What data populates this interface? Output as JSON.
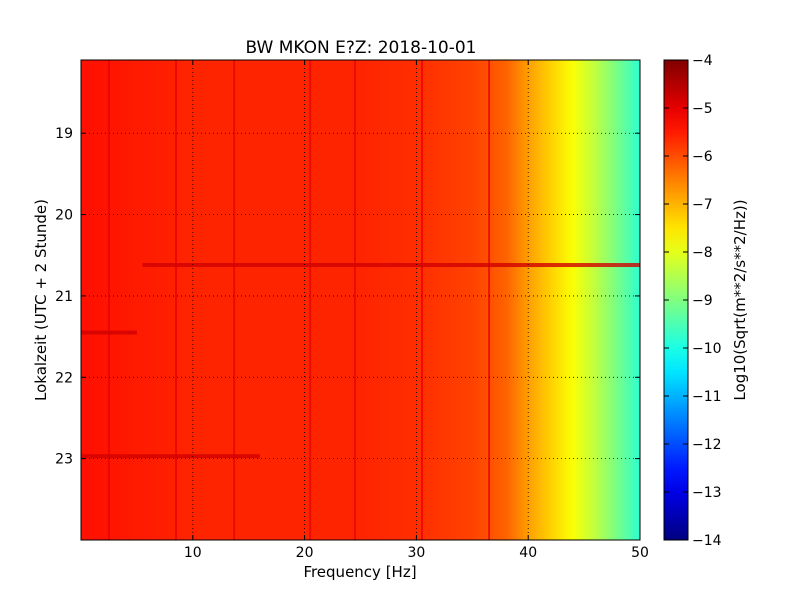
{
  "chart_data": {
    "type": "heatmap",
    "title": "BW MKON E?Z: 2018-10-01",
    "xlabel": "Frequency [Hz]",
    "ylabel": "Lokalzeit (UTC + 2 Stunde)",
    "colorbar_label": "Log10(Sqrt(m**2/s**2/Hz))",
    "xlim": [
      0,
      50
    ],
    "ylim": [
      24,
      18.1
    ],
    "x_ticks": [
      10,
      20,
      30,
      40,
      50
    ],
    "y_ticks": [
      19,
      20,
      21,
      22,
      23
    ],
    "color_scale": {
      "vmin": -14,
      "vmax": -4,
      "colormap": "jet",
      "ticks": [
        -4,
        -5,
        -6,
        -7,
        -8,
        -9,
        -10,
        -11,
        -12,
        -13,
        -14
      ]
    },
    "grid": true,
    "spectral_profile": {
      "frequency_hz": [
        0,
        5,
        10,
        15,
        20,
        25,
        30,
        35,
        38,
        40,
        42,
        44,
        46,
        48,
        50
      ],
      "log10_amplitude": [
        -5.4,
        -5.5,
        -5.6,
        -5.6,
        -5.6,
        -5.6,
        -5.7,
        -5.9,
        -6.2,
        -6.8,
        -7.3,
        -7.8,
        -8.4,
        -9.1,
        -9.8
      ]
    },
    "stripe_features": {
      "vertical_lines_hz": [
        2.5,
        8.5,
        13.7,
        20.5,
        24.5,
        30.5,
        36.5
      ],
      "horizontal_bands_hour": [
        {
          "hour": 20.62,
          "f_start": 5.5,
          "f_end": 50
        },
        {
          "hour": 21.45,
          "f_start": 0,
          "f_end": 5
        },
        {
          "hour": 22.97,
          "f_start": 0,
          "f_end": 16
        }
      ]
    }
  }
}
